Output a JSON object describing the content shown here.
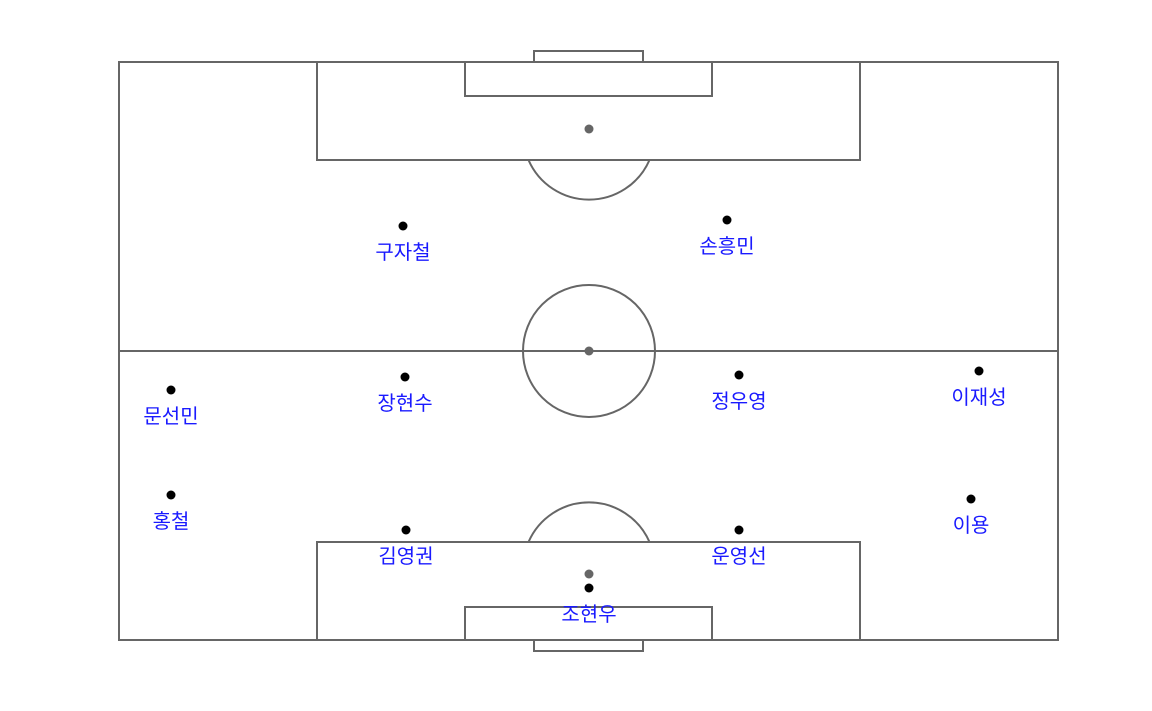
{
  "colors": {
    "line": "#666666",
    "dot": "#000000",
    "name": "#1a1aff"
  },
  "players": [
    {
      "id": "gk",
      "name": "조현우"
    },
    {
      "id": "lb",
      "name": "홍철"
    },
    {
      "id": "lcb",
      "name": "김영권"
    },
    {
      "id": "rcb",
      "name": "운영선"
    },
    {
      "id": "rb",
      "name": "이용"
    },
    {
      "id": "lm",
      "name": "문선민"
    },
    {
      "id": "lcm",
      "name": "장현수"
    },
    {
      "id": "rcm",
      "name": "정우영"
    },
    {
      "id": "rm",
      "name": "이재성"
    },
    {
      "id": "lf",
      "name": "구자철"
    },
    {
      "id": "rf",
      "name": "손흥민"
    }
  ]
}
